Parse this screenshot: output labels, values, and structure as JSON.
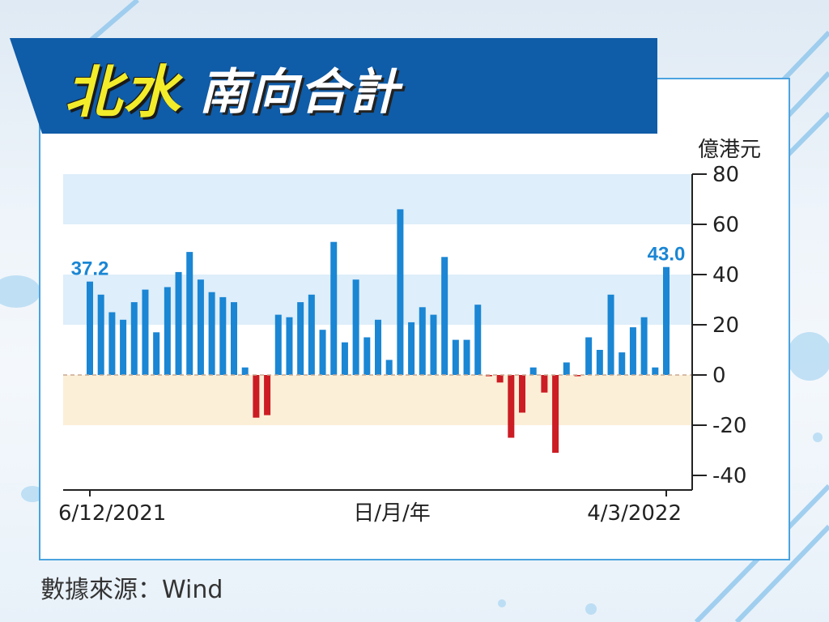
{
  "title": {
    "highlight": "北水",
    "rest": "南向合計"
  },
  "source": "數據來源：Wind",
  "colors": {
    "positive": "#1a86d4",
    "negative": "#cc1c24",
    "banner": "#0f5ca8",
    "title_highlight": "#f2ec2a",
    "label": "#1a86d4"
  },
  "chart_data": {
    "type": "bar",
    "unit": "億港元",
    "xlabel": "日/月/年",
    "x_tick_labels": [
      "6/12/2021",
      "4/3/2022"
    ],
    "ylim": [
      -40,
      80
    ],
    "y_ticks": [
      80,
      60,
      40,
      20,
      0,
      -20,
      -40
    ],
    "bands": [
      {
        "from": 60,
        "to": 80,
        "color": "#deeefa"
      },
      {
        "from": 20,
        "to": 40,
        "color": "#deeefa"
      },
      {
        "from": -20,
        "to": 0,
        "color": "#fcefd8"
      }
    ],
    "values": [
      37.2,
      32,
      25,
      22,
      29,
      34,
      17,
      35,
      41,
      49,
      38,
      33,
      31,
      29,
      3,
      -17,
      -16,
      24,
      23,
      29,
      32,
      18,
      53,
      13,
      38,
      15,
      22,
      6,
      66,
      21,
      27,
      24,
      47,
      14,
      14,
      28,
      -0.5,
      -3,
      -25,
      -15,
      3,
      -7,
      -31,
      5,
      -0.5,
      15,
      10,
      32,
      9,
      19,
      23,
      3,
      43.0
    ],
    "data_labels": [
      {
        "index": 0,
        "text": "37.2"
      },
      {
        "index": 52,
        "text": "43.0"
      }
    ]
  }
}
